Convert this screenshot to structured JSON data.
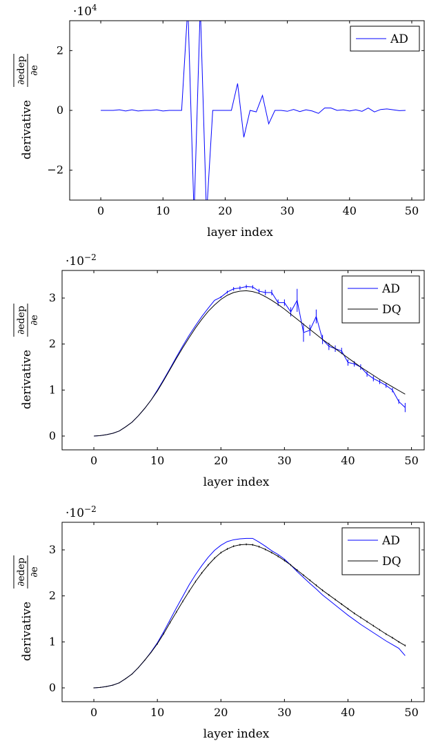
{
  "chart_data": [
    {
      "type": "line",
      "scale_label": "·10",
      "scale_exponent": "4",
      "xlabel": "layer index",
      "ylabel_prefix": "derivative",
      "ylabel_num": "∂edep",
      "ylabel_den": "∂e",
      "xlim": [
        -5,
        52
      ],
      "ylim": [
        -3,
        3
      ],
      "xticks": [
        0,
        10,
        20,
        30,
        40,
        50
      ],
      "yticks": [
        -2,
        0,
        2
      ],
      "ytick_labels": [
        "−2",
        "0",
        "2"
      ],
      "series": [
        {
          "name": "AD",
          "color": "#0000ff",
          "x": [
            0,
            1,
            2,
            3,
            4,
            5,
            6,
            7,
            8,
            9,
            10,
            11,
            12,
            13,
            14,
            15,
            16,
            17,
            18,
            19,
            20,
            21,
            22,
            23,
            24,
            25,
            26,
            27,
            28,
            29,
            30,
            31,
            32,
            33,
            34,
            35,
            36,
            37,
            38,
            39,
            40,
            41,
            42,
            43,
            44,
            45,
            46,
            47,
            48,
            49
          ],
          "y": [
            0,
            0,
            0,
            0.02,
            -0.02,
            0.02,
            -0.02,
            0,
            0,
            0.02,
            -0.02,
            0,
            0,
            0,
            3.5,
            -3.5,
            3.5,
            -3.5,
            0,
            0,
            0,
            0,
            0.9,
            -0.9,
            0,
            -0.05,
            0.5,
            -0.45,
            0,
            0,
            -0.03,
            0.03,
            -0.04,
            0.02,
            -0.02,
            -0.1,
            0.08,
            0.08,
            0,
            0.02,
            -0.02,
            0.02,
            -0.03,
            0.08,
            -0.05,
            0.03,
            0.05,
            0.02,
            -0.01,
            0
          ]
        }
      ],
      "legend_position": "top-right"
    },
    {
      "type": "line",
      "scale_label": "·10",
      "scale_exponent": "−2",
      "xlabel": "layer index",
      "ylabel_prefix": "derivative",
      "ylabel_num": "∂edep",
      "ylabel_den": "∂e",
      "xlim": [
        -5,
        52
      ],
      "ylim": [
        -0.3,
        3.6
      ],
      "xticks": [
        0,
        10,
        20,
        30,
        40,
        50
      ],
      "yticks": [
        0,
        1,
        2,
        3
      ],
      "ytick_labels": [
        "0",
        "1",
        "2",
        "3"
      ],
      "series": [
        {
          "name": "AD",
          "color": "#0000ff",
          "x": [
            0,
            1,
            2,
            3,
            4,
            5,
            6,
            7,
            8,
            9,
            10,
            11,
            12,
            13,
            14,
            15,
            16,
            17,
            18,
            19,
            20,
            21,
            22,
            23,
            24,
            25,
            26,
            27,
            28,
            29,
            30,
            31,
            32,
            33,
            34,
            35,
            36,
            37,
            38,
            39,
            40,
            41,
            42,
            43,
            44,
            45,
            46,
            47,
            48,
            49
          ],
          "y": [
            0,
            0.01,
            0.03,
            0.06,
            0.11,
            0.2,
            0.3,
            0.44,
            0.6,
            0.78,
            1.0,
            1.23,
            1.47,
            1.72,
            1.96,
            2.19,
            2.4,
            2.6,
            2.78,
            2.95,
            3.02,
            3.13,
            3.2,
            3.22,
            3.25,
            3.24,
            3.15,
            3.12,
            3.12,
            2.9,
            2.9,
            2.7,
            2.95,
            2.25,
            2.3,
            2.6,
            2.1,
            1.95,
            1.9,
            1.85,
            1.6,
            1.57,
            1.5,
            1.35,
            1.25,
            1.18,
            1.1,
            1.0,
            0.75,
            0.62
          ],
          "err": [
            0,
            0,
            0,
            0,
            0,
            0,
            0,
            0,
            0,
            0,
            0,
            0,
            0,
            0,
            0,
            0,
            0,
            0,
            0,
            0,
            0.02,
            0.03,
            0.04,
            0.04,
            0.04,
            0.04,
            0.05,
            0.06,
            0.06,
            0.07,
            0.07,
            0.1,
            0.25,
            0.2,
            0.12,
            0.15,
            0.1,
            0.08,
            0.07,
            0.07,
            0.07,
            0.06,
            0.06,
            0.06,
            0.06,
            0.05,
            0.05,
            0.05,
            0.05,
            0.1
          ]
        },
        {
          "name": "DQ",
          "color": "#000000",
          "x": [
            0,
            1,
            2,
            3,
            4,
            5,
            6,
            7,
            8,
            9,
            10,
            11,
            12,
            13,
            14,
            15,
            16,
            17,
            18,
            19,
            20,
            21,
            22,
            23,
            24,
            25,
            26,
            27,
            28,
            29,
            30,
            31,
            32,
            33,
            34,
            35,
            36,
            37,
            38,
            39,
            40,
            41,
            42,
            43,
            44,
            45,
            46,
            47,
            48,
            49
          ],
          "y": [
            0,
            0.01,
            0.03,
            0.06,
            0.11,
            0.2,
            0.3,
            0.44,
            0.6,
            0.78,
            0.98,
            1.21,
            1.45,
            1.69,
            1.92,
            2.14,
            2.35,
            2.54,
            2.71,
            2.85,
            2.97,
            3.06,
            3.12,
            3.15,
            3.16,
            3.14,
            3.1,
            3.03,
            2.95,
            2.86,
            2.76,
            2.65,
            2.54,
            2.43,
            2.32,
            2.21,
            2.1,
            2.0,
            1.9,
            1.8,
            1.7,
            1.6,
            1.5,
            1.41,
            1.32,
            1.23,
            1.15,
            1.07,
            0.99,
            0.91
          ]
        }
      ],
      "legend_position": "top-right"
    },
    {
      "type": "line",
      "scale_label": "·10",
      "scale_exponent": "−2",
      "xlabel": "layer index",
      "ylabel_prefix": "derivative",
      "ylabel_num": "∂edep",
      "ylabel_den": "∂e",
      "xlim": [
        -5,
        52
      ],
      "ylim": [
        -0.3,
        3.6
      ],
      "xticks": [
        0,
        10,
        20,
        30,
        40,
        50
      ],
      "yticks": [
        0,
        1,
        2,
        3
      ],
      "ytick_labels": [
        "0",
        "1",
        "2",
        "3"
      ],
      "series": [
        {
          "name": "AD",
          "color": "#0000ff",
          "x": [
            0,
            1,
            2,
            3,
            4,
            5,
            6,
            7,
            8,
            9,
            10,
            11,
            12,
            13,
            14,
            15,
            16,
            17,
            18,
            19,
            20,
            21,
            22,
            23,
            24,
            25,
            26,
            27,
            28,
            29,
            30,
            31,
            32,
            33,
            34,
            35,
            36,
            37,
            38,
            39,
            40,
            41,
            42,
            43,
            44,
            45,
            46,
            47,
            48,
            49
          ],
          "y": [
            0,
            0.01,
            0.03,
            0.06,
            0.11,
            0.2,
            0.3,
            0.44,
            0.6,
            0.78,
            0.98,
            1.22,
            1.48,
            1.74,
            1.99,
            2.24,
            2.46,
            2.66,
            2.84,
            2.99,
            3.1,
            3.18,
            3.22,
            3.24,
            3.25,
            3.25,
            3.17,
            3.08,
            2.98,
            2.9,
            2.8,
            2.67,
            2.53,
            2.4,
            2.27,
            2.15,
            2.02,
            1.91,
            1.8,
            1.69,
            1.58,
            1.48,
            1.38,
            1.29,
            1.2,
            1.11,
            1.02,
            0.94,
            0.86,
            0.7
          ]
        },
        {
          "name": "DQ",
          "color": "#000000",
          "x": [
            0,
            1,
            2,
            3,
            4,
            5,
            6,
            7,
            8,
            9,
            10,
            11,
            12,
            13,
            14,
            15,
            16,
            17,
            18,
            19,
            20,
            21,
            22,
            23,
            24,
            25,
            26,
            27,
            28,
            29,
            30,
            31,
            32,
            33,
            34,
            35,
            36,
            37,
            38,
            39,
            40,
            41,
            42,
            43,
            44,
            45,
            46,
            47,
            48,
            49
          ],
          "y": [
            0,
            0.01,
            0.03,
            0.06,
            0.11,
            0.2,
            0.3,
            0.44,
            0.6,
            0.77,
            0.96,
            1.18,
            1.42,
            1.65,
            1.88,
            2.1,
            2.31,
            2.5,
            2.67,
            2.82,
            2.94,
            3.02,
            3.08,
            3.11,
            3.12,
            3.11,
            3.07,
            3.01,
            2.94,
            2.86,
            2.77,
            2.67,
            2.56,
            2.45,
            2.34,
            2.23,
            2.12,
            2.02,
            1.92,
            1.82,
            1.72,
            1.62,
            1.53,
            1.44,
            1.35,
            1.26,
            1.17,
            1.09,
            1.0,
            0.92
          ],
          "err": [
            0.01,
            0.01,
            0.01,
            0.01,
            0.01,
            0.01,
            0.01,
            0.01,
            0.01,
            0.01,
            0.02,
            0.02,
            0.02,
            0.02,
            0.02,
            0.02,
            0.02,
            0.02,
            0.02,
            0.02,
            0.02,
            0.02,
            0.02,
            0.02,
            0.02,
            0.02,
            0.02,
            0.02,
            0.02,
            0.02,
            0.02,
            0.02,
            0.02,
            0.02,
            0.02,
            0.02,
            0.02,
            0.02,
            0.02,
            0.02,
            0.02,
            0.02,
            0.02,
            0.02,
            0.02,
            0.02,
            0.02,
            0.02,
            0.02,
            0.02
          ]
        }
      ],
      "legend_position": "top-right"
    }
  ]
}
